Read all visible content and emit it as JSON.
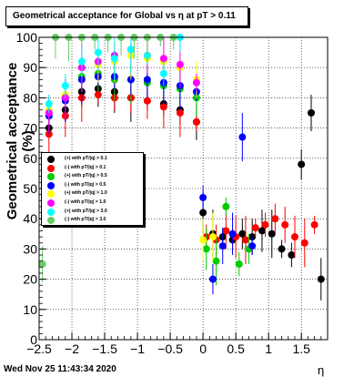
{
  "chart_data": {
    "type": "scatter",
    "title": "Geometrical acceptance for Global vs   η at pT > 0.11",
    "xlabel": "η",
    "ylabel": "Geometrical acceptance (%)",
    "xlim": [
      -2.5,
      1.9
    ],
    "ylim": [
      0,
      100
    ],
    "x_ticks": [
      -2.5,
      -2,
      -1.5,
      -1,
      -0.5,
      0,
      0.5,
      1,
      1.5
    ],
    "y_ticks": [
      0,
      10,
      20,
      30,
      40,
      50,
      60,
      70,
      80,
      90,
      100
    ],
    "grid": true,
    "legend_position": "left-middle",
    "series": [
      {
        "name": "(+) with pT/|q| > 0.1",
        "color": "#000000",
        "x": [
          -2.35,
          -2.1,
          -1.85,
          -1.6,
          -1.35,
          -1.1,
          -0.85,
          -0.6,
          -0.35,
          -0.1,
          0.0,
          0.15,
          0.3,
          0.45,
          0.6,
          0.75,
          0.9,
          1.05,
          1.2,
          1.35,
          1.5,
          1.65,
          1.8
        ],
        "y": [
          70,
          76,
          82,
          83,
          82,
          80,
          79,
          78,
          76,
          72,
          42,
          35,
          34,
          33,
          35,
          34,
          36,
          35,
          30,
          28,
          58,
          75,
          20
        ]
      },
      {
        "name": "(-) with pT/|q| > 0.1",
        "color": "#ff0000",
        "x": [
          -2.35,
          -2.1,
          -1.85,
          -1.6,
          -1.35,
          -1.1,
          -0.85,
          -0.6,
          -0.35,
          -0.1,
          0.05,
          0.2,
          0.35,
          0.5,
          0.65,
          0.8,
          0.95,
          1.1,
          1.25,
          1.4,
          1.55,
          1.7
        ],
        "y": [
          68,
          74,
          80,
          81,
          80,
          80,
          79,
          77,
          75,
          72,
          34,
          33,
          36,
          34,
          33,
          37,
          38,
          40,
          38,
          34,
          32,
          38
        ]
      },
      {
        "name": "(+) with pT/|q| > 0.5",
        "color": "#00cc00",
        "x": [
          -2.35,
          -2.1,
          -1.85,
          -1.6,
          -1.35,
          -1.1,
          -0.85,
          -0.6,
          -0.35,
          -0.1,
          0.05,
          0.2,
          0.35,
          0.55,
          0.7
        ],
        "y": [
          75,
          80,
          87,
          88,
          86,
          86,
          85,
          84,
          83,
          80,
          30,
          26,
          44,
          25,
          30
        ]
      },
      {
        "name": "(-) with pT/|q| > 0.5",
        "color": "#0000ff",
        "x": [
          -2.35,
          -2.1,
          -1.85,
          -1.6,
          -1.35,
          -1.1,
          -0.85,
          -0.6,
          -0.35,
          -0.1,
          0.0,
          0.15,
          0.3,
          0.45,
          0.6,
          0.75
        ],
        "y": [
          74,
          79,
          86,
          87,
          87,
          86,
          86,
          85,
          84,
          82,
          47,
          20,
          31,
          35,
          67,
          31
        ]
      },
      {
        "name": "(+) with pT/|q| > 1.0",
        "color": "#ffff00",
        "x": [
          -2.35,
          -2.1,
          -1.85,
          -1.6,
          -1.35,
          -1.1,
          -0.85,
          -0.6,
          -0.35,
          -0.1,
          0.0,
          0.15
        ],
        "y": [
          76,
          81,
          90,
          91,
          92,
          94,
          93,
          92,
          90,
          86,
          33,
          34
        ]
      },
      {
        "name": "(-) with pT/|q| > 1.0",
        "color": "#ff00ff",
        "x": [
          -2.35,
          -2.1,
          -1.85,
          -1.6,
          -1.35,
          -1.1,
          -0.85,
          -0.6,
          -0.35,
          -0.1
        ],
        "y": [
          75,
          80,
          90,
          92,
          94,
          96,
          94,
          93,
          91,
          85
        ]
      },
      {
        "name": "(+) with pT/|q| > 3.0",
        "color": "#00ffff",
        "x": [
          -2.35,
          -2.1,
          -1.85,
          -1.6,
          -1.35,
          -1.1,
          -0.85,
          -0.6,
          -0.35
        ],
        "y": [
          78,
          84,
          92,
          95,
          93,
          96,
          94,
          88,
          100
        ]
      },
      {
        "name": "(-) with pT/|q| > 3.0",
        "color": "#66cc66",
        "x": [
          -2.45,
          -2.25,
          -2.05,
          -1.85,
          -1.65,
          -1.45,
          -1.25,
          -1.05,
          -0.85,
          -0.65,
          -0.45
        ],
        "y": [
          25,
          100,
          100,
          100,
          100,
          100,
          100,
          100,
          100,
          100,
          100
        ]
      }
    ]
  },
  "footer": "Wed Nov 25 11:43:34 2020"
}
